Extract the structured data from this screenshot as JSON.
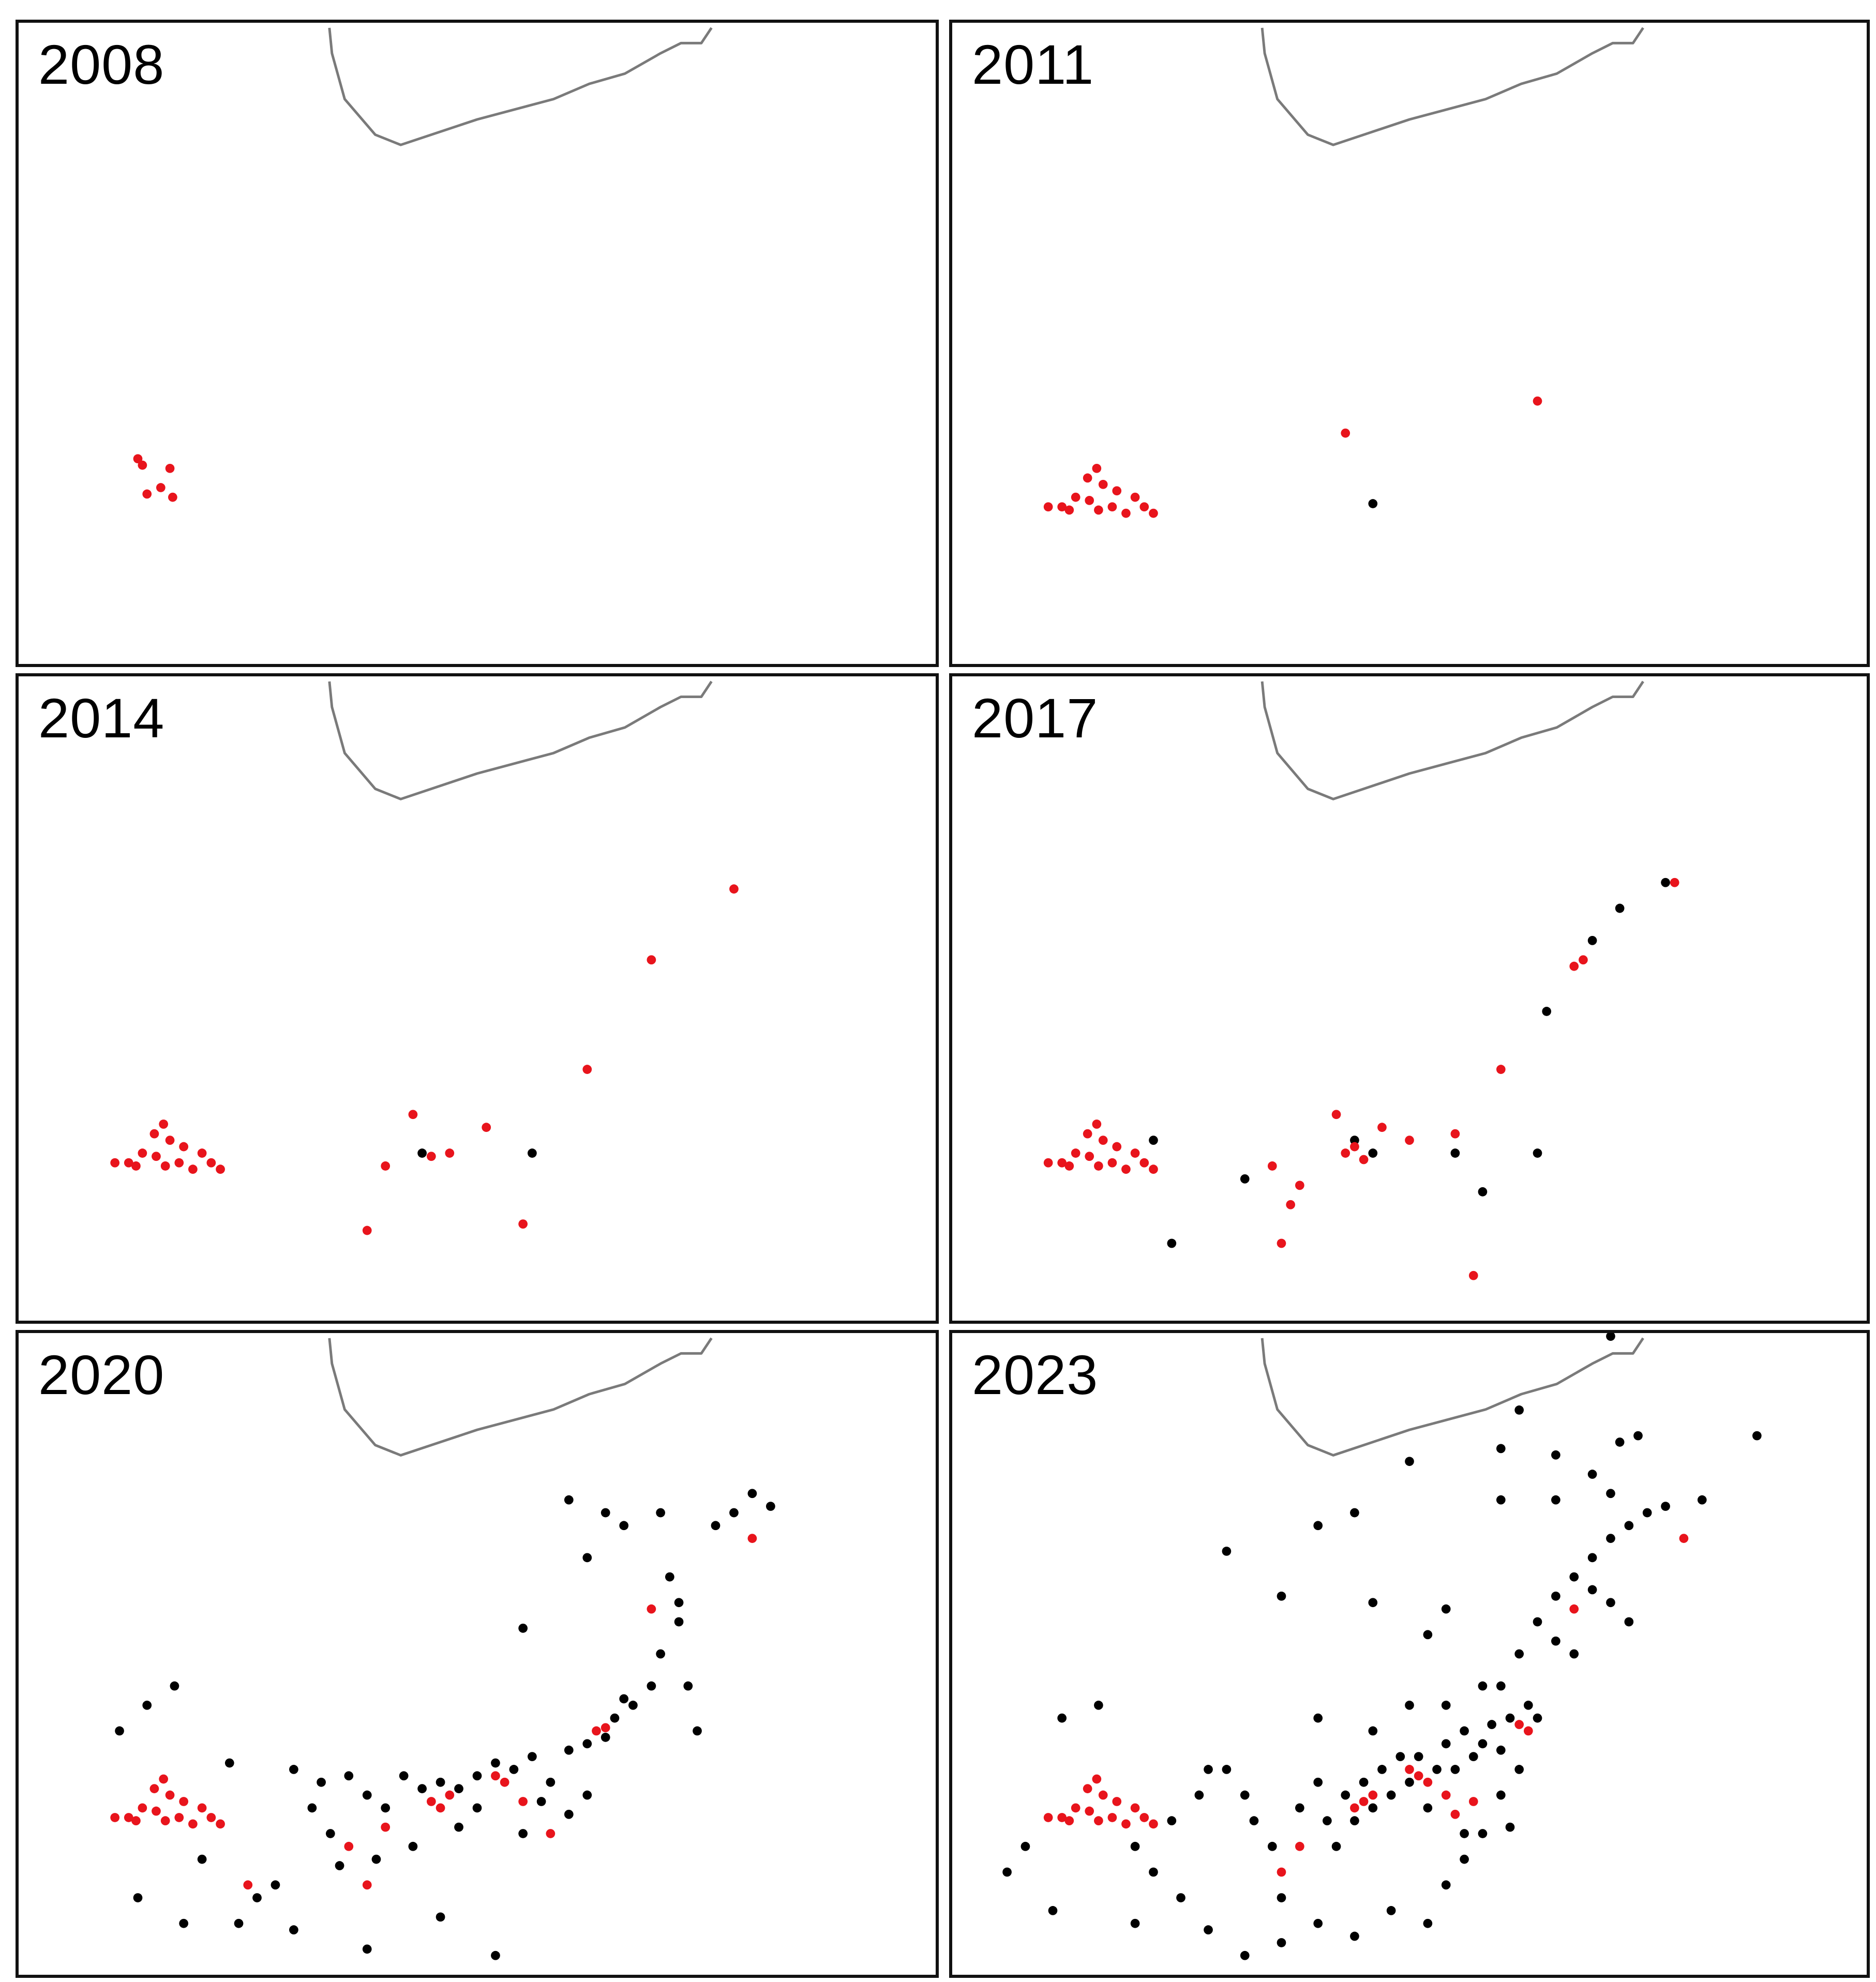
{
  "colors": {
    "red": "#e8141c",
    "black": "#000000",
    "border": "#111111",
    "state_line": "#c8c8c8"
  },
  "panels": [
    {
      "year": "2008",
      "red": [
        [
          0.135,
          0.69
        ],
        [
          0.165,
          0.695
        ],
        [
          0.155,
          0.725
        ],
        [
          0.14,
          0.735
        ],
        [
          0.13,
          0.68
        ],
        [
          0.168,
          0.74
        ]
      ],
      "black": []
    },
    {
      "year": "2011",
      "red": [
        [
          0.12,
          0.755
        ],
        [
          0.135,
          0.74
        ],
        [
          0.15,
          0.745
        ],
        [
          0.16,
          0.76
        ],
        [
          0.175,
          0.755
        ],
        [
          0.19,
          0.765
        ],
        [
          0.2,
          0.74
        ],
        [
          0.18,
          0.73
        ],
        [
          0.165,
          0.72
        ],
        [
          0.148,
          0.71
        ],
        [
          0.158,
          0.695
        ],
        [
          0.128,
          0.76
        ],
        [
          0.21,
          0.755
        ],
        [
          0.22,
          0.765
        ],
        [
          0.105,
          0.755
        ],
        [
          0.43,
          0.64
        ],
        [
          0.64,
          0.59
        ]
      ],
      "black": [
        [
          0.46,
          0.75
        ]
      ]
    },
    {
      "year": "2014",
      "red": [
        [
          0.12,
          0.755
        ],
        [
          0.135,
          0.74
        ],
        [
          0.15,
          0.745
        ],
        [
          0.16,
          0.76
        ],
        [
          0.175,
          0.755
        ],
        [
          0.19,
          0.765
        ],
        [
          0.2,
          0.74
        ],
        [
          0.18,
          0.73
        ],
        [
          0.165,
          0.72
        ],
        [
          0.148,
          0.71
        ],
        [
          0.158,
          0.695
        ],
        [
          0.128,
          0.76
        ],
        [
          0.21,
          0.755
        ],
        [
          0.22,
          0.765
        ],
        [
          0.105,
          0.755
        ],
        [
          0.43,
          0.68
        ],
        [
          0.4,
          0.76
        ],
        [
          0.45,
          0.745
        ],
        [
          0.47,
          0.74
        ],
        [
          0.51,
          0.7
        ],
        [
          0.62,
          0.61
        ],
        [
          0.55,
          0.85
        ],
        [
          0.38,
          0.86
        ],
        [
          0.69,
          0.44
        ],
        [
          0.78,
          0.33
        ]
      ],
      "black": [
        [
          0.44,
          0.74
        ],
        [
          0.56,
          0.74
        ]
      ]
    },
    {
      "year": "2017",
      "red": [
        [
          0.12,
          0.755
        ],
        [
          0.135,
          0.74
        ],
        [
          0.15,
          0.745
        ],
        [
          0.16,
          0.76
        ],
        [
          0.175,
          0.755
        ],
        [
          0.19,
          0.765
        ],
        [
          0.2,
          0.74
        ],
        [
          0.18,
          0.73
        ],
        [
          0.165,
          0.72
        ],
        [
          0.148,
          0.71
        ],
        [
          0.158,
          0.695
        ],
        [
          0.128,
          0.76
        ],
        [
          0.21,
          0.755
        ],
        [
          0.22,
          0.765
        ],
        [
          0.105,
          0.755
        ],
        [
          0.42,
          0.68
        ],
        [
          0.43,
          0.74
        ],
        [
          0.45,
          0.75
        ],
        [
          0.44,
          0.73
        ],
        [
          0.47,
          0.7
        ],
        [
          0.35,
          0.76
        ],
        [
          0.38,
          0.79
        ],
        [
          0.37,
          0.82
        ],
        [
          0.36,
          0.88
        ],
        [
          0.5,
          0.72
        ],
        [
          0.55,
          0.71
        ],
        [
          0.6,
          0.61
        ],
        [
          0.57,
          0.93
        ],
        [
          0.79,
          0.32
        ],
        [
          0.68,
          0.45
        ],
        [
          0.69,
          0.44
        ]
      ],
      "black": [
        [
          0.22,
          0.72
        ],
        [
          0.44,
          0.72
        ],
        [
          0.46,
          0.74
        ],
        [
          0.32,
          0.78
        ],
        [
          0.24,
          0.88
        ],
        [
          0.55,
          0.74
        ],
        [
          0.64,
          0.74
        ],
        [
          0.58,
          0.8
        ],
        [
          0.7,
          0.41
        ],
        [
          0.73,
          0.36
        ],
        [
          0.65,
          0.52
        ],
        [
          0.78,
          0.32
        ]
      ]
    },
    {
      "year": "2020",
      "red": [
        [
          0.12,
          0.755
        ],
        [
          0.135,
          0.74
        ],
        [
          0.15,
          0.745
        ],
        [
          0.16,
          0.76
        ],
        [
          0.175,
          0.755
        ],
        [
          0.19,
          0.765
        ],
        [
          0.2,
          0.74
        ],
        [
          0.18,
          0.73
        ],
        [
          0.165,
          0.72
        ],
        [
          0.148,
          0.71
        ],
        [
          0.158,
          0.695
        ],
        [
          0.128,
          0.76
        ],
        [
          0.21,
          0.755
        ],
        [
          0.22,
          0.765
        ],
        [
          0.105,
          0.755
        ],
        [
          0.46,
          0.74
        ],
        [
          0.45,
          0.73
        ],
        [
          0.47,
          0.72
        ],
        [
          0.52,
          0.69
        ],
        [
          0.53,
          0.7
        ],
        [
          0.63,
          0.62
        ],
        [
          0.64,
          0.615
        ],
        [
          0.55,
          0.73
        ],
        [
          0.69,
          0.43
        ],
        [
          0.8,
          0.32
        ],
        [
          0.58,
          0.78
        ],
        [
          0.4,
          0.77
        ],
        [
          0.38,
          0.86
        ],
        [
          0.25,
          0.86
        ],
        [
          0.36,
          0.8
        ]
      ],
      "black": [
        [
          0.3,
          0.68
        ],
        [
          0.33,
          0.7
        ],
        [
          0.36,
          0.69
        ],
        [
          0.38,
          0.72
        ],
        [
          0.4,
          0.74
        ],
        [
          0.42,
          0.69
        ],
        [
          0.44,
          0.71
        ],
        [
          0.46,
          0.7
        ],
        [
          0.48,
          0.71
        ],
        [
          0.5,
          0.69
        ],
        [
          0.52,
          0.67
        ],
        [
          0.54,
          0.68
        ],
        [
          0.56,
          0.66
        ],
        [
          0.58,
          0.7
        ],
        [
          0.6,
          0.65
        ],
        [
          0.62,
          0.64
        ],
        [
          0.64,
          0.63
        ],
        [
          0.65,
          0.6
        ],
        [
          0.66,
          0.57
        ],
        [
          0.6,
          0.75
        ],
        [
          0.62,
          0.72
        ],
        [
          0.55,
          0.78
        ],
        [
          0.48,
          0.77
        ],
        [
          0.43,
          0.8
        ],
        [
          0.39,
          0.82
        ],
        [
          0.35,
          0.83
        ],
        [
          0.28,
          0.86
        ],
        [
          0.26,
          0.88
        ],
        [
          0.24,
          0.92
        ],
        [
          0.3,
          0.93
        ],
        [
          0.38,
          0.96
        ],
        [
          0.46,
          0.91
        ],
        [
          0.52,
          0.97
        ],
        [
          0.55,
          0.46
        ],
        [
          0.62,
          0.35
        ],
        [
          0.66,
          0.3
        ],
        [
          0.7,
          0.28
        ],
        [
          0.72,
          0.42
        ],
        [
          0.71,
          0.38
        ],
        [
          0.72,
          0.45
        ],
        [
          0.7,
          0.5
        ],
        [
          0.73,
          0.55
        ],
        [
          0.74,
          0.62
        ],
        [
          0.76,
          0.3
        ],
        [
          0.78,
          0.28
        ],
        [
          0.8,
          0.25
        ],
        [
          0.82,
          0.27
        ],
        [
          0.6,
          0.26
        ],
        [
          0.64,
          0.28
        ],
        [
          0.2,
          0.82
        ],
        [
          0.13,
          0.88
        ],
        [
          0.18,
          0.92
        ],
        [
          0.23,
          0.67
        ],
        [
          0.11,
          0.62
        ],
        [
          0.17,
          0.55
        ],
        [
          0.14,
          0.58
        ],
        [
          0.32,
          0.74
        ],
        [
          0.34,
          0.78
        ],
        [
          0.5,
          0.74
        ],
        [
          0.57,
          0.73
        ],
        [
          0.67,
          0.58
        ],
        [
          0.69,
          0.55
        ]
      ]
    },
    {
      "year": "2023",
      "red": [
        [
          0.12,
          0.755
        ],
        [
          0.135,
          0.74
        ],
        [
          0.15,
          0.745
        ],
        [
          0.16,
          0.76
        ],
        [
          0.175,
          0.755
        ],
        [
          0.19,
          0.765
        ],
        [
          0.2,
          0.74
        ],
        [
          0.18,
          0.73
        ],
        [
          0.165,
          0.72
        ],
        [
          0.148,
          0.71
        ],
        [
          0.158,
          0.695
        ],
        [
          0.128,
          0.76
        ],
        [
          0.21,
          0.755
        ],
        [
          0.22,
          0.765
        ],
        [
          0.105,
          0.755
        ],
        [
          0.44,
          0.74
        ],
        [
          0.45,
          0.73
        ],
        [
          0.46,
          0.72
        ],
        [
          0.5,
          0.68
        ],
        [
          0.51,
          0.69
        ],
        [
          0.54,
          0.72
        ],
        [
          0.52,
          0.7
        ],
        [
          0.57,
          0.73
        ],
        [
          0.62,
          0.61
        ],
        [
          0.63,
          0.62
        ],
        [
          0.68,
          0.43
        ],
        [
          0.8,
          0.32
        ],
        [
          0.36,
          0.84
        ],
        [
          0.38,
          0.8
        ],
        [
          0.55,
          0.75
        ]
      ],
      "black": [
        [
          0.3,
          0.68
        ],
        [
          0.32,
          0.72
        ],
        [
          0.33,
          0.76
        ],
        [
          0.35,
          0.8
        ],
        [
          0.36,
          0.88
        ],
        [
          0.38,
          0.74
        ],
        [
          0.4,
          0.7
        ],
        [
          0.41,
          0.76
        ],
        [
          0.42,
          0.8
        ],
        [
          0.43,
          0.72
        ],
        [
          0.44,
          0.76
        ],
        [
          0.45,
          0.7
        ],
        [
          0.46,
          0.74
        ],
        [
          0.47,
          0.68
        ],
        [
          0.48,
          0.72
        ],
        [
          0.49,
          0.66
        ],
        [
          0.5,
          0.7
        ],
        [
          0.51,
          0.66
        ],
        [
          0.52,
          0.74
        ],
        [
          0.53,
          0.68
        ],
        [
          0.54,
          0.64
        ],
        [
          0.55,
          0.68
        ],
        [
          0.56,
          0.62
        ],
        [
          0.57,
          0.66
        ],
        [
          0.58,
          0.64
        ],
        [
          0.59,
          0.61
        ],
        [
          0.6,
          0.65
        ],
        [
          0.61,
          0.6
        ],
        [
          0.62,
          0.68
        ],
        [
          0.63,
          0.58
        ],
        [
          0.64,
          0.6
        ],
        [
          0.6,
          0.72
        ],
        [
          0.58,
          0.78
        ],
        [
          0.56,
          0.82
        ],
        [
          0.54,
          0.86
        ],
        [
          0.52,
          0.92
        ],
        [
          0.48,
          0.9
        ],
        [
          0.44,
          0.94
        ],
        [
          0.4,
          0.92
        ],
        [
          0.36,
          0.95
        ],
        [
          0.32,
          0.97
        ],
        [
          0.28,
          0.93
        ],
        [
          0.25,
          0.88
        ],
        [
          0.22,
          0.84
        ],
        [
          0.2,
          0.8
        ],
        [
          0.24,
          0.76
        ],
        [
          0.27,
          0.72
        ],
        [
          0.28,
          0.68
        ],
        [
          0.12,
          0.6
        ],
        [
          0.16,
          0.58
        ],
        [
          0.08,
          0.8
        ],
        [
          0.06,
          0.84
        ],
        [
          0.11,
          0.9
        ],
        [
          0.2,
          0.92
        ],
        [
          0.4,
          0.6
        ],
        [
          0.46,
          0.62
        ],
        [
          0.5,
          0.58
        ],
        [
          0.54,
          0.58
        ],
        [
          0.58,
          0.55
        ],
        [
          0.62,
          0.5
        ],
        [
          0.64,
          0.45
        ],
        [
          0.66,
          0.41
        ],
        [
          0.68,
          0.38
        ],
        [
          0.7,
          0.4
        ],
        [
          0.72,
          0.42
        ],
        [
          0.74,
          0.45
        ],
        [
          0.66,
          0.48
        ],
        [
          0.68,
          0.5
        ],
        [
          0.7,
          0.35
        ],
        [
          0.72,
          0.32
        ],
        [
          0.74,
          0.3
        ],
        [
          0.76,
          0.28
        ],
        [
          0.78,
          0.27
        ],
        [
          0.82,
          0.26
        ],
        [
          0.72,
          0.25
        ],
        [
          0.7,
          0.22
        ],
        [
          0.66,
          0.26
        ],
        [
          0.6,
          0.26
        ],
        [
          0.54,
          0.43
        ],
        [
          0.52,
          0.47
        ],
        [
          0.46,
          0.42
        ],
        [
          0.36,
          0.41
        ],
        [
          0.3,
          0.34
        ],
        [
          0.4,
          0.3
        ],
        [
          0.44,
          0.28
        ],
        [
          0.5,
          0.2
        ],
        [
          0.6,
          0.18
        ],
        [
          0.66,
          0.19
        ],
        [
          0.73,
          0.17
        ],
        [
          0.75,
          0.16
        ],
        [
          0.88,
          0.16
        ],
        [
          0.72,
          0.005
        ],
        [
          0.62,
          0.12
        ],
        [
          0.6,
          0.55
        ],
        [
          0.56,
          0.78
        ],
        [
          0.61,
          0.77
        ]
      ]
    }
  ]
}
